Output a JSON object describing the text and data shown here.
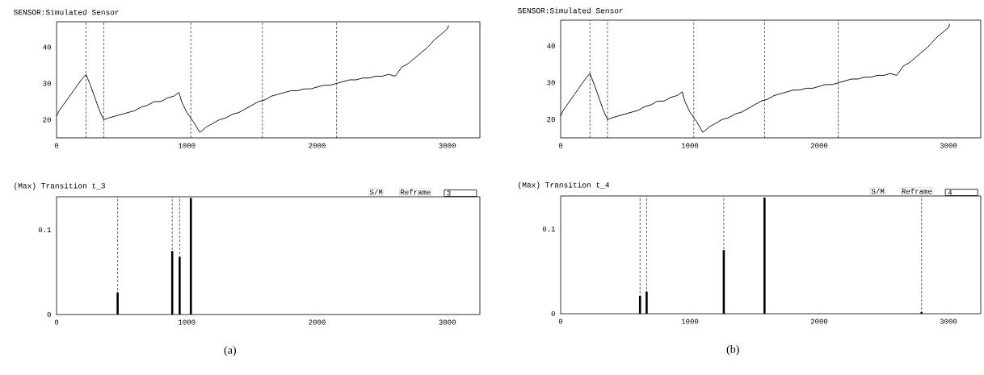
{
  "chart_data": [
    {
      "type": "line",
      "title": "SENSOR:Simulated Sensor",
      "color": "#000000",
      "x": [
        0,
        20,
        50,
        80,
        110,
        150,
        190,
        226,
        260,
        300,
        330,
        362,
        400,
        450,
        500,
        550,
        600,
        650,
        700,
        750,
        800,
        850,
        900,
        940,
        960,
        1000,
        1050,
        1100,
        1150,
        1200,
        1250,
        1300,
        1350,
        1400,
        1450,
        1500,
        1550,
        1600,
        1650,
        1700,
        1750,
        1800,
        1850,
        1900,
        1950,
        2000,
        2050,
        2100,
        2150,
        2200,
        2250,
        2300,
        2350,
        2400,
        2450,
        2500,
        2550,
        2600,
        2650,
        2700,
        2750,
        2800,
        2850,
        2900,
        2950,
        3000,
        3010
      ],
      "values": [
        21,
        22.5,
        24,
        25.5,
        27,
        29,
        31,
        32.5,
        29.5,
        25.5,
        22.5,
        20,
        20.5,
        21,
        21.5,
        22,
        22.5,
        23.5,
        24,
        25,
        25,
        26,
        26.5,
        27.5,
        25,
        22,
        19.5,
        16.5,
        18,
        19,
        20,
        20.5,
        21.5,
        22,
        23,
        24,
        25,
        25.5,
        26.5,
        27,
        27.5,
        28,
        28,
        28.5,
        28.5,
        29,
        29.5,
        29.5,
        30,
        30.5,
        31,
        31,
        31.5,
        31.5,
        32,
        32,
        32.5,
        32,
        34.5,
        35.5,
        37,
        38.5,
        40,
        42,
        43.5,
        45,
        46
      ],
      "xlim": [
        0,
        3250
      ],
      "ylim": [
        15,
        47
      ],
      "xticks": [
        0,
        1000,
        2000,
        3000
      ],
      "yticks": [
        20,
        30,
        40
      ],
      "ref_lines": [
        {
          "axis": "x",
          "value": 226,
          "line_style": "dashed"
        },
        {
          "axis": "x",
          "value": 362,
          "line_style": "dashed"
        },
        {
          "axis": "x",
          "value": 1031,
          "line_style": "dashed"
        },
        {
          "axis": "x",
          "value": 1580,
          "line_style": "dashed"
        },
        {
          "axis": "x",
          "value": 2150,
          "line_style": "dashed"
        }
      ]
    },
    {
      "type": "bar",
      "title": "(Max) Transition t_3",
      "color": "#000000",
      "x": [
        469,
        888,
        945,
        1031
      ],
      "values": [
        0.026,
        0.075,
        0.068,
        0.1375
      ],
      "xlim": [
        0,
        3250
      ],
      "ylim": [
        0,
        0.139
      ],
      "xticks": [
        0,
        1000,
        2000,
        3000
      ],
      "yticks": [
        0,
        0.1
      ],
      "ref_lines": [
        {
          "axis": "x",
          "value": 469,
          "line_style": "dashed"
        },
        {
          "axis": "x",
          "value": 888,
          "line_style": "dashed"
        },
        {
          "axis": "x",
          "value": 945,
          "line_style": "dashed"
        }
      ],
      "annotations": [
        "S/M",
        "Reframe",
        "3",
        "(a)"
      ]
    },
    {
      "type": "line",
      "title": "SENSOR:Simulated Sensor",
      "color": "#000000",
      "x": [
        0,
        20,
        50,
        80,
        110,
        150,
        190,
        226,
        260,
        300,
        330,
        362,
        400,
        450,
        500,
        550,
        600,
        650,
        700,
        750,
        800,
        850,
        900,
        940,
        960,
        1000,
        1050,
        1100,
        1150,
        1200,
        1250,
        1300,
        1350,
        1400,
        1450,
        1500,
        1550,
        1600,
        1650,
        1700,
        1750,
        1800,
        1850,
        1900,
        1950,
        2000,
        2050,
        2100,
        2150,
        2200,
        2250,
        2300,
        2350,
        2400,
        2450,
        2500,
        2550,
        2600,
        2650,
        2700,
        2750,
        2800,
        2850,
        2900,
        2950,
        3000,
        3010
      ],
      "values": [
        21,
        22.5,
        24,
        25.5,
        27,
        29,
        31,
        32.5,
        29.5,
        25.5,
        22.5,
        20,
        20.5,
        21,
        21.5,
        22,
        22.5,
        23.5,
        24,
        25,
        25,
        26,
        26.5,
        27.5,
        25,
        22,
        19.5,
        16.5,
        18,
        19,
        20,
        20.5,
        21.5,
        22,
        23,
        24,
        25,
        25.5,
        26.5,
        27,
        27.5,
        28,
        28,
        28.5,
        28.5,
        29,
        29.5,
        29.5,
        30,
        30.5,
        31,
        31,
        31.5,
        31.5,
        32,
        32,
        32.5,
        32,
        34.5,
        35.5,
        37,
        38.5,
        40,
        42,
        43.5,
        45,
        46
      ],
      "xlim": [
        0,
        3250
      ],
      "ylim": [
        15,
        47
      ],
      "xticks": [
        0,
        1000,
        2000,
        3000
      ],
      "yticks": [
        20,
        30,
        40
      ],
      "ref_lines": [
        {
          "axis": "x",
          "value": 227,
          "line_style": "dashed"
        },
        {
          "axis": "x",
          "value": 362,
          "line_style": "dashed"
        },
        {
          "axis": "x",
          "value": 1030,
          "line_style": "dashed"
        },
        {
          "axis": "x",
          "value": 1578,
          "line_style": "dashed"
        },
        {
          "axis": "x",
          "value": 2147,
          "line_style": "dashed"
        }
      ]
    },
    {
      "type": "bar",
      "title": "(Max) Transition t_4",
      "color": "#000000",
      "x": [
        614,
        665,
        1262,
        1577,
        2792
      ],
      "values": [
        0.021,
        0.026,
        0.075,
        0.137,
        0.002
      ],
      "xlim": [
        0,
        3250
      ],
      "ylim": [
        0,
        0.139
      ],
      "xticks": [
        0,
        1000,
        2000,
        3000
      ],
      "yticks": [
        0,
        0.1
      ],
      "ref_lines": [
        {
          "axis": "x",
          "value": 614,
          "line_style": "dashed"
        },
        {
          "axis": "x",
          "value": 665,
          "line_style": "dashed"
        },
        {
          "axis": "x",
          "value": 1262,
          "line_style": "dashed"
        },
        {
          "axis": "x",
          "value": 2792,
          "line_style": "dashed"
        }
      ],
      "annotations": [
        "S/M",
        "Reframe",
        "4",
        "(b)"
      ]
    }
  ]
}
